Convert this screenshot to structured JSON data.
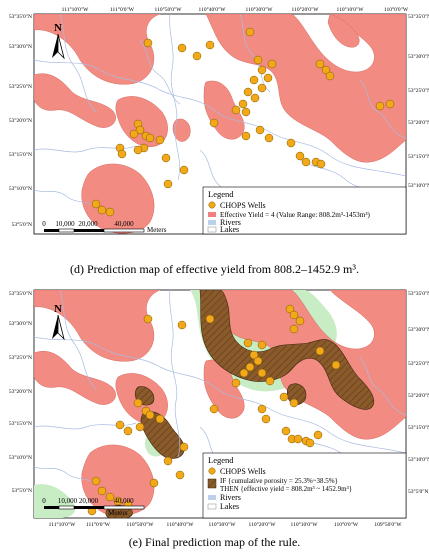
{
  "panel_d": {
    "caption_letter": "(d)",
    "caption_text": "Prediction map of effective yield from 808.2–1452.9 m³.",
    "top_lon_labels": [
      "111°10'0\"W",
      "111°0'0\"W",
      "110°50'0\"W",
      "110°40'0\"W",
      "110°30'0\"W",
      "110°20'0\"W",
      "110°10'0\"W",
      "110°0'0\"W"
    ],
    "left_lat_labels": [
      "53°35'0\"N",
      "53°30'0\"N",
      "53°25'0\"N",
      "53°20'0\"N",
      "53°15'0\"N",
      "53°10'0\"N",
      "53°5'0\"N"
    ],
    "right_lat_labels": [
      "53°35'0\"N",
      "53°30'0\"N",
      "53°25'0\"N",
      "53°20'0\"N",
      "53°15'0\"N",
      "53°10'0\"N"
    ],
    "north_label": "N",
    "scalebar": {
      "ticks": [
        "0",
        "10,000",
        "20,000",
        "40,000"
      ],
      "unit": "Meters"
    },
    "legend": {
      "title": "Legend",
      "items": [
        {
          "label": "CHOPS Wells",
          "symbol": "well-circle",
          "color": "#f2a819"
        },
        {
          "label": "Effective Yield = 4 (Value Range: 808.2m³-1453m³)",
          "symbol": "area",
          "color": "#f08080"
        },
        {
          "label": "Rivers",
          "symbol": "area",
          "color": "#bcd0ec"
        },
        {
          "label": "Lakes",
          "symbol": "area",
          "color": "#ffffff"
        }
      ]
    }
  },
  "panel_e": {
    "caption_letter": "(e)",
    "caption_text": "Final prediction map of the rule.",
    "bottom_lon_labels": [
      "111°10'0\"W",
      "111°0'0\"W",
      "110°50'0\"W",
      "110°40'0\"W",
      "110°30'0\"W",
      "110°20'0\"W",
      "110°10'0\"W",
      "110°0'0\"W",
      "109°50'0\"W"
    ],
    "left_lat_labels": [
      "53°35'0\"N",
      "53°30'0\"N",
      "53°25'0\"N",
      "53°20'0\"N",
      "53°15'0\"N",
      "53°10'0\"N",
      "53°5'0\"N"
    ],
    "right_lat_labels": [
      "53°35'0\"N",
      "53°30'0\"N",
      "53°25'0\"N",
      "53°20'0\"N",
      "53°15'0\"N",
      "53°10'0\"N",
      "53°5'0\"N"
    ],
    "north_label": "N",
    "scalebar": {
      "ticks": [
        "0",
        "10,000 20,000",
        "40,000"
      ],
      "unit": "Meters"
    },
    "legend": {
      "title": "Legend",
      "items": [
        {
          "label": "CHOPS Wells",
          "symbol": "well-circle",
          "color": "#f2a819"
        },
        {
          "label": "IF {cumulative porosity = 25.3%~38.5%}",
          "label2": "THEN {effective yield = 808.2m³ ~ 1452.9m³}",
          "symbol": "hatched-area",
          "color": "#8b5a2b"
        },
        {
          "label": "Rivers",
          "symbol": "area",
          "color": "#bcd0ec"
        },
        {
          "label": "Lakes",
          "symbol": "area",
          "color": "#ffffff"
        }
      ]
    }
  },
  "colors": {
    "yield_zone": "#f28b82",
    "rule_zone": "#8b5a2b",
    "porosity_zone": "#c8ecc4",
    "well": "#f2a819",
    "well_stroke": "#7a5a00",
    "river": "#a8bce0"
  }
}
